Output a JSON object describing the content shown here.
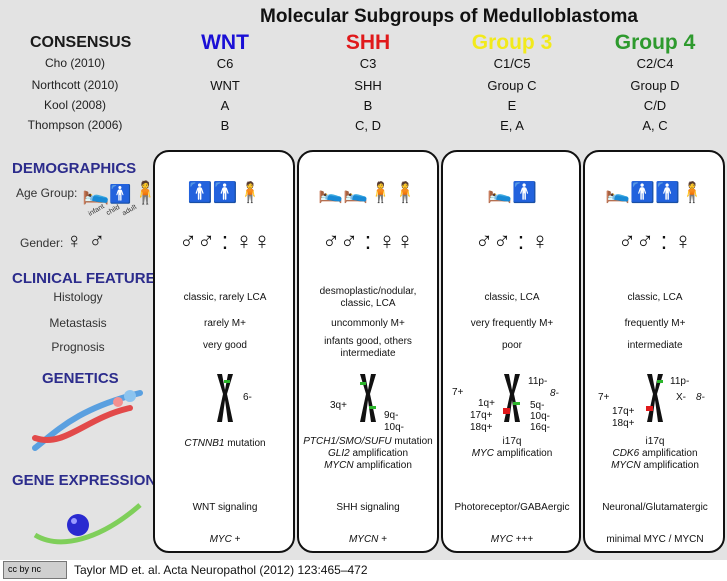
{
  "title": "Molecular Subgroups of Medulloblastoma",
  "consensus_label": "CONSENSUS",
  "row_labels": [
    "Cho (2010)",
    "Northcott (2010)",
    "Kool (2008)",
    "Thompson (2006)"
  ],
  "subgroups": [
    {
      "name": "WNT",
      "color": "#1a0fd6",
      "rows": [
        "C6",
        "WNT",
        "A",
        "B"
      ],
      "age_icons": "child, child, adult",
      "gender": "♂♂ : ♀♀",
      "histology": "classic, rarely LCA",
      "metastasis": "rarely M+",
      "prognosis": "very good",
      "cyto": [
        "6-"
      ],
      "genetics": [
        {
          "i": "CTNNB1",
          "t": " mutation"
        }
      ],
      "expression": "WNT signaling",
      "myc": {
        "i": "MYC",
        "t": " +"
      }
    },
    {
      "name": "SHH",
      "color": "#e0191b",
      "rows": [
        "C3",
        "SHH",
        "B",
        "C, D"
      ],
      "age_icons": "infant, infant, adult, adult",
      "gender": "♂♂ : ♀♀",
      "histology": "desmoplastic/nodular, classic, LCA",
      "metastasis": "uncommonly M+",
      "prognosis": "infants good, others intermediate",
      "cyto": [
        "3q+",
        "9q-",
        "10q-"
      ],
      "genetics": [
        {
          "i": "PTCH1/SMO/SUFU",
          "t": " mutation"
        },
        {
          "i": "GLI2",
          "t": " amplification"
        },
        {
          "i": "MYCN",
          "t": " amplification"
        }
      ],
      "expression": "SHH signaling",
      "myc": {
        "i": "MYCN",
        "t": " +"
      }
    },
    {
      "name": "Group 3",
      "color": "#f2ea1c",
      "rows": [
        "C1/C5",
        "Group C",
        "E",
        "E, A"
      ],
      "age_icons": "infant, child",
      "gender": "♂♂ : ♀",
      "histology": "classic, LCA",
      "metastasis": "very frequently M+",
      "prognosis": "poor",
      "cyto": [
        "7+",
        "1q+",
        "17q+",
        "18q+",
        "11p-",
        "8-",
        "5q-",
        "10q-",
        "16q-"
      ],
      "genetics": [
        {
          "i": "",
          "t": "i17q"
        },
        {
          "i": "MYC",
          "t": " amplification"
        }
      ],
      "expression": "Photoreceptor/GABAergic",
      "myc": {
        "i": "MYC",
        "t": " +++"
      }
    },
    {
      "name": "Group 4",
      "color": "#2e9a2e",
      "rows": [
        "C2/C4",
        "Group D",
        "C/D",
        "A, C"
      ],
      "age_icons": "infant, child, child, adult",
      "gender": "♂♂ : ♀",
      "histology": "classic, LCA",
      "metastasis": "frequently M+",
      "prognosis": "intermediate",
      "cyto": [
        "7+",
        "17q+",
        "18q+",
        "11p-",
        "X-",
        "8-"
      ],
      "genetics": [
        {
          "i": "",
          "t": "i17q"
        },
        {
          "i": "CDK6",
          "t": " amplification"
        },
        {
          "i": "MYCN",
          "t": " amplification"
        }
      ],
      "expression": "Neuronal/Glutamatergic",
      "myc": {
        "i": "",
        "t": "minimal MYC / MYCN"
      }
    }
  ],
  "sections": {
    "demographics": "DEMOGRAPHICS",
    "age_group": "Age Group:",
    "age_icon_labels": [
      "infant",
      "child",
      "adult"
    ],
    "gender": "Gender:",
    "gender_symbols": "♀ ♂",
    "clinical": "CLINICAL FEATURES",
    "histology": "Histology",
    "metastasis": "Metastasis",
    "prognosis": "Prognosis",
    "genetics": "GENETICS",
    "gene_expression": "GENE EXPRESSION"
  },
  "footer": {
    "license": "cc by nc",
    "citation": "Taylor MD et. al. Acta Neuropathol (2012) 123:465–472"
  }
}
